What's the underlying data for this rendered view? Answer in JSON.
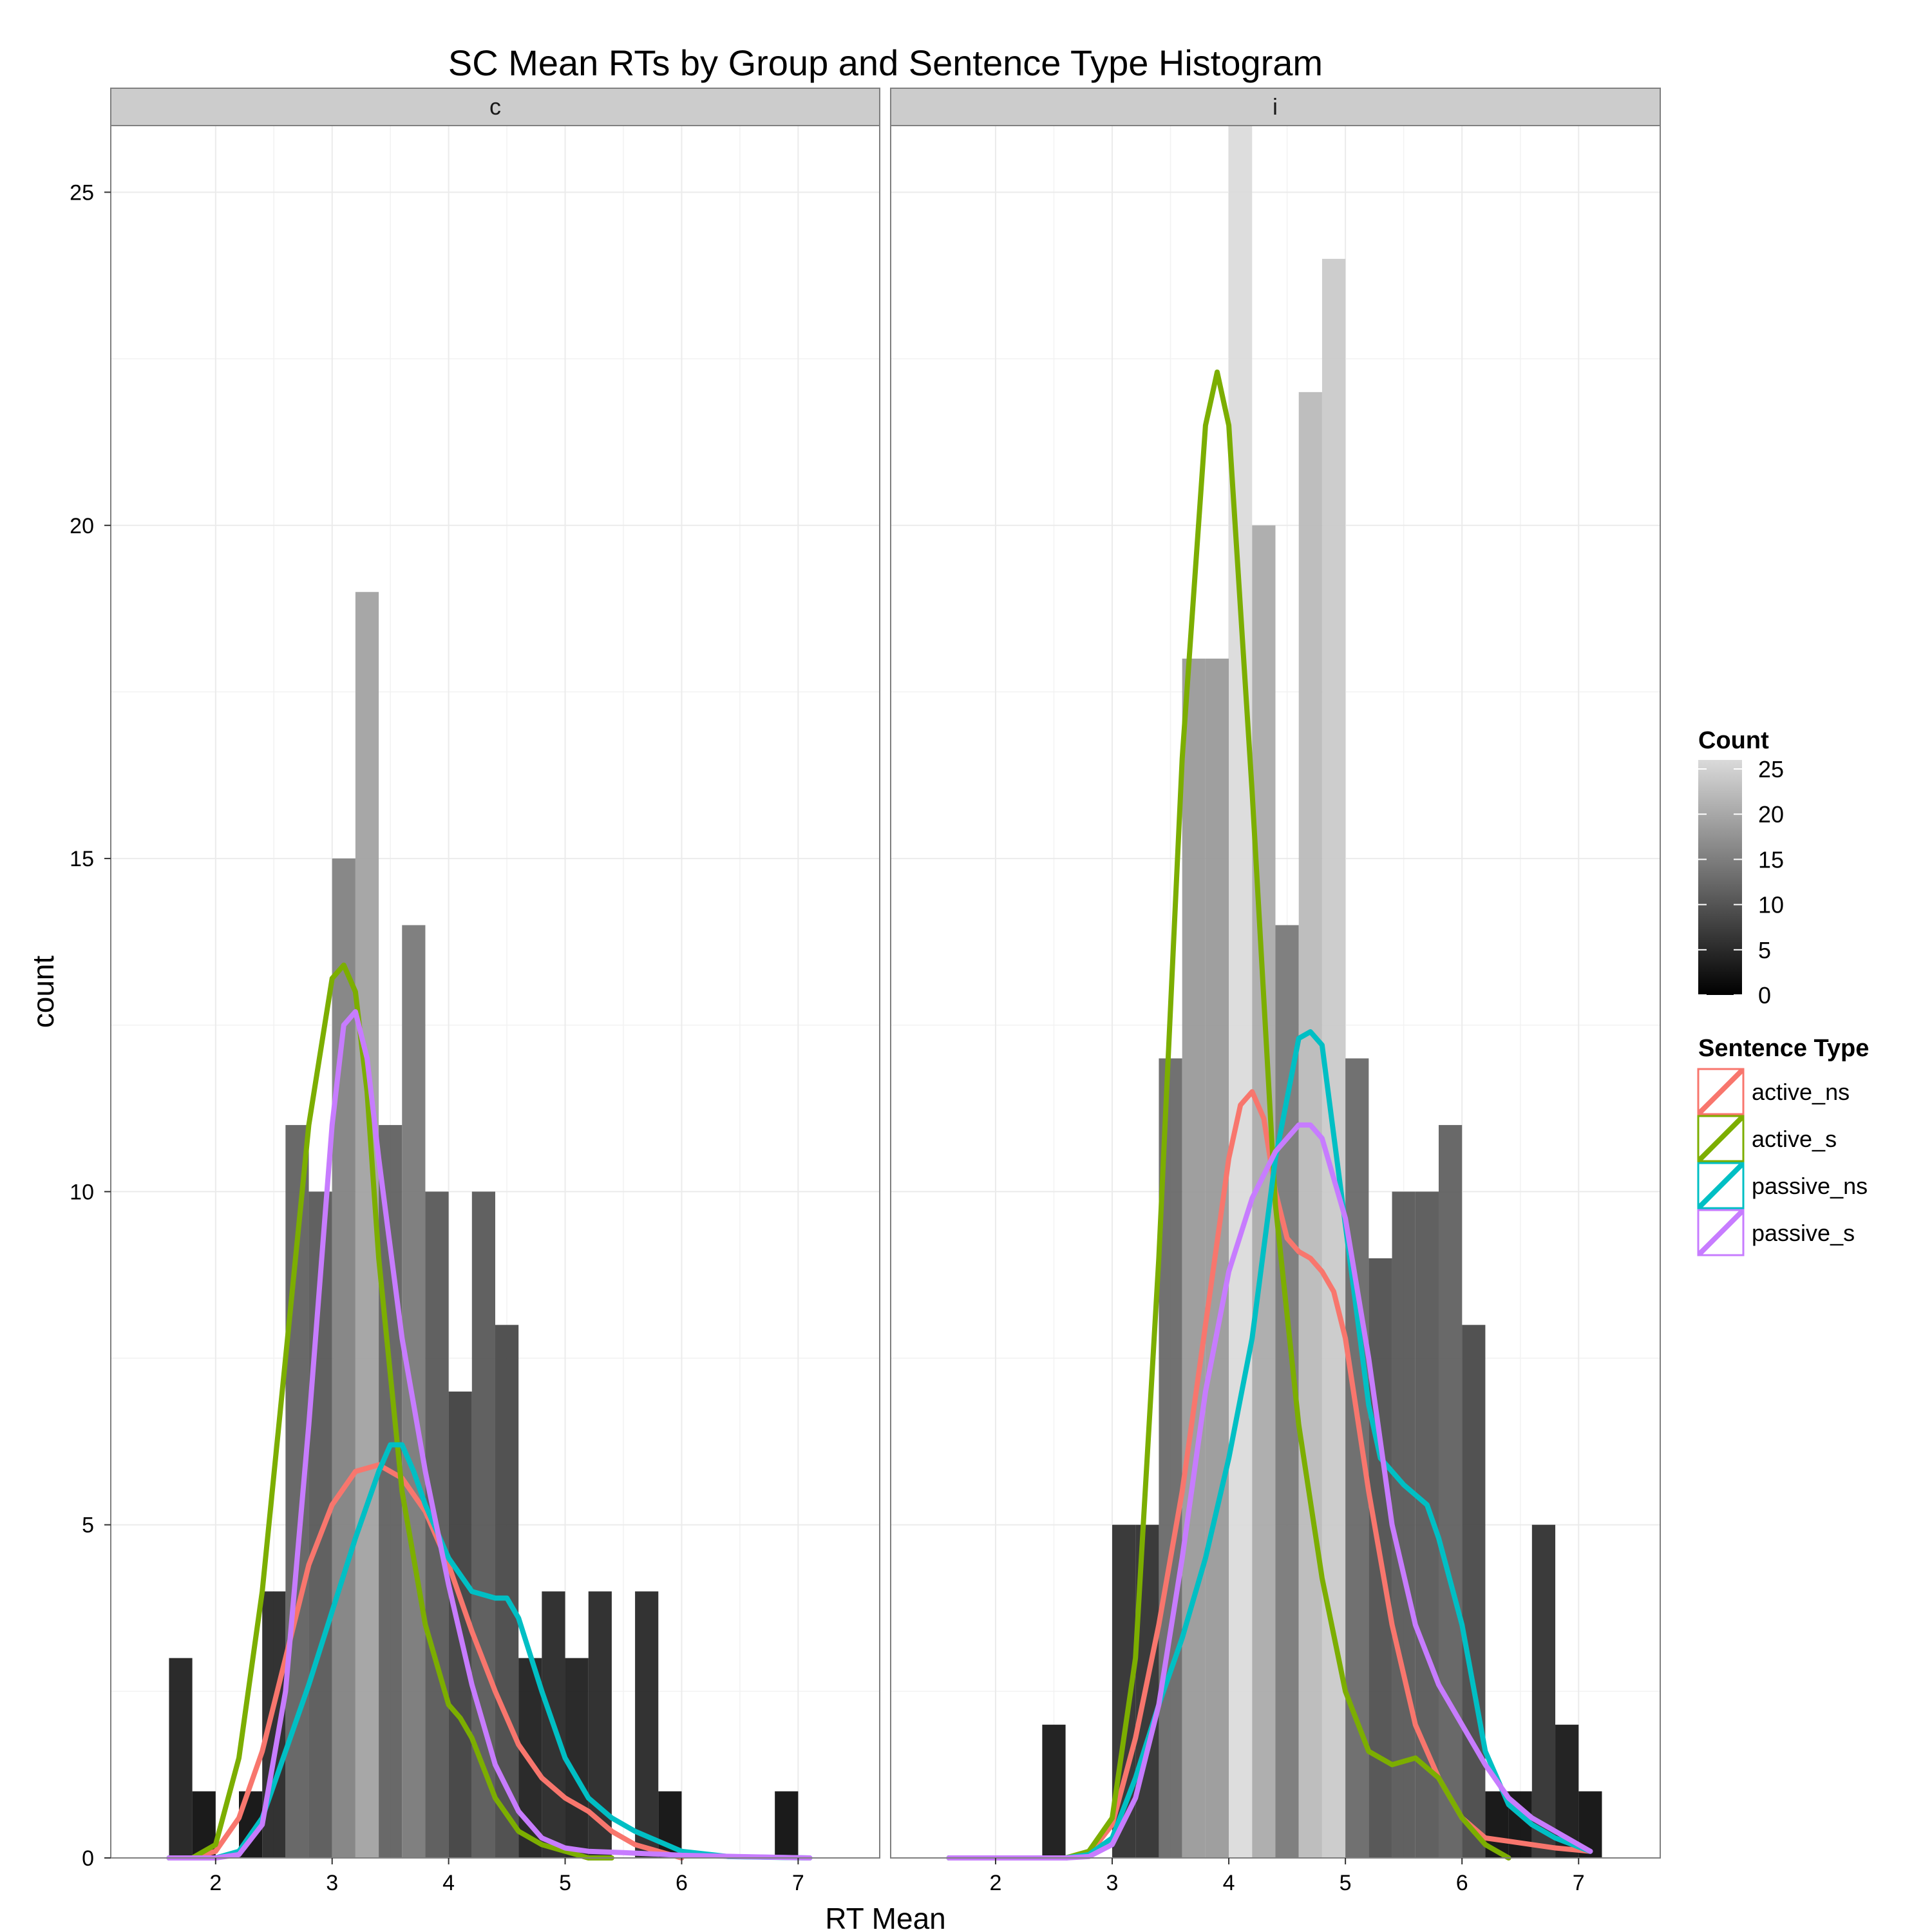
{
  "chart_data": {
    "type": "bar",
    "title": "SC Mean RTs by Group and Sentence Type Histogram",
    "xlabel": "RT Mean",
    "ylabel": "count",
    "xlim": [
      1.1,
      7.7
    ],
    "ylim": [
      0,
      26
    ],
    "x_ticks": [
      "2",
      "3",
      "4",
      "5",
      "6",
      "7"
    ],
    "y_ticks": [
      "0",
      "5",
      "10",
      "15",
      "20",
      "25"
    ],
    "bin_width": 0.2,
    "grid": true,
    "facets": [
      {
        "label": "c",
        "bins": [
          {
            "x": 1.7,
            "count": 3
          },
          {
            "x": 1.9,
            "count": 1
          },
          {
            "x": 2.3,
            "count": 1
          },
          {
            "x": 2.5,
            "count": 4
          },
          {
            "x": 2.7,
            "count": 11
          },
          {
            "x": 2.9,
            "count": 10
          },
          {
            "x": 3.1,
            "count": 15
          },
          {
            "x": 3.3,
            "count": 19
          },
          {
            "x": 3.5,
            "count": 11
          },
          {
            "x": 3.7,
            "count": 14
          },
          {
            "x": 3.9,
            "count": 10
          },
          {
            "x": 4.1,
            "count": 7
          },
          {
            "x": 4.3,
            "count": 10
          },
          {
            "x": 4.5,
            "count": 8
          },
          {
            "x": 4.7,
            "count": 3
          },
          {
            "x": 4.9,
            "count": 4
          },
          {
            "x": 5.1,
            "count": 3
          },
          {
            "x": 5.3,
            "count": 4
          },
          {
            "x": 5.7,
            "count": 4
          },
          {
            "x": 5.9,
            "count": 1
          },
          {
            "x": 6.9,
            "count": 1
          }
        ],
        "series": [
          {
            "name": "active_ns",
            "x": [
              1.6,
              1.8,
              2.0,
              2.2,
              2.4,
              2.6,
              2.8,
              3.0,
              3.2,
              3.4,
              3.6,
              3.8,
              4.0,
              4.2,
              4.4,
              4.6,
              4.8,
              5.0,
              5.2,
              5.4,
              5.6,
              5.8,
              6.0
            ],
            "y": [
              0,
              0,
              0.1,
              0.6,
              1.6,
              3.0,
              4.4,
              5.3,
              5.8,
              5.9,
              5.7,
              5.2,
              4.4,
              3.4,
              2.5,
              1.7,
              1.2,
              0.9,
              0.7,
              0.4,
              0.2,
              0.1,
              0
            ]
          },
          {
            "name": "active_s",
            "x": [
              1.6,
              1.8,
              2.0,
              2.2,
              2.4,
              2.6,
              2.8,
              3.0,
              3.1,
              3.2,
              3.3,
              3.4,
              3.6,
              3.8,
              4.0,
              4.1,
              4.2,
              4.4,
              4.6,
              4.8,
              5.0,
              5.2,
              5.4
            ],
            "y": [
              0,
              0,
              0.2,
              1.5,
              4.0,
              7.5,
              11.0,
              13.2,
              13.4,
              13.0,
              11.5,
              9.0,
              5.5,
              3.5,
              2.3,
              2.1,
              1.8,
              0.9,
              0.4,
              0.2,
              0.1,
              0,
              0
            ]
          },
          {
            "name": "passive_ns",
            "x": [
              1.6,
              2.0,
              2.2,
              2.4,
              2.6,
              2.8,
              3.0,
              3.2,
              3.4,
              3.5,
              3.6,
              3.7,
              3.8,
              4.0,
              4.2,
              4.4,
              4.5,
              4.6,
              4.8,
              5.0,
              5.2,
              5.4,
              5.6,
              5.8,
              6.0,
              6.4,
              7.1
            ],
            "y": [
              0,
              0,
              0.1,
              0.6,
              1.6,
              2.6,
              3.7,
              4.8,
              5.8,
              6.2,
              6.2,
              5.8,
              5.3,
              4.5,
              4.0,
              3.9,
              3.9,
              3.6,
              2.5,
              1.5,
              0.9,
              0.6,
              0.4,
              0.25,
              0.1,
              0.02,
              0
            ]
          },
          {
            "name": "passive_s",
            "x": [
              1.6,
              2.0,
              2.2,
              2.4,
              2.6,
              2.8,
              3.0,
              3.1,
              3.2,
              3.3,
              3.4,
              3.6,
              3.8,
              4.0,
              4.2,
              4.4,
              4.6,
              4.8,
              5.0,
              5.2,
              5.5,
              6.0,
              6.5,
              7.1
            ],
            "y": [
              0,
              0,
              0.05,
              0.5,
              2.5,
              6.5,
              11.0,
              12.5,
              12.7,
              12.0,
              10.5,
              7.8,
              5.8,
              4.1,
              2.6,
              1.4,
              0.7,
              0.3,
              0.15,
              0.1,
              0.08,
              0.04,
              0.02,
              0
            ]
          }
        ]
      },
      {
        "label": "i",
        "bins": [
          {
            "x": 2.5,
            "count": 2
          },
          {
            "x": 3.1,
            "count": 5
          },
          {
            "x": 3.3,
            "count": 5
          },
          {
            "x": 3.5,
            "count": 12
          },
          {
            "x": 3.7,
            "count": 18
          },
          {
            "x": 3.9,
            "count": 18
          },
          {
            "x": 4.1,
            "count": 26
          },
          {
            "x": 4.3,
            "count": 20
          },
          {
            "x": 4.5,
            "count": 14
          },
          {
            "x": 4.7,
            "count": 22
          },
          {
            "x": 4.9,
            "count": 24
          },
          {
            "x": 5.1,
            "count": 12
          },
          {
            "x": 5.3,
            "count": 9
          },
          {
            "x": 5.5,
            "count": 10
          },
          {
            "x": 5.7,
            "count": 10
          },
          {
            "x": 5.9,
            "count": 11
          },
          {
            "x": 6.1,
            "count": 8
          },
          {
            "x": 6.3,
            "count": 1
          },
          {
            "x": 6.5,
            "count": 1
          },
          {
            "x": 6.7,
            "count": 5
          },
          {
            "x": 6.9,
            "count": 2
          },
          {
            "x": 7.1,
            "count": 1
          }
        ],
        "series": [
          {
            "name": "active_ns",
            "x": [
              1.6,
              2.6,
              2.8,
              3.0,
              3.2,
              3.4,
              3.6,
              3.8,
              4.0,
              4.1,
              4.2,
              4.3,
              4.4,
              4.5,
              4.6,
              4.7,
              4.8,
              4.9,
              5.0,
              5.2,
              5.4,
              5.6,
              5.8,
              6.0,
              6.2,
              6.4,
              6.6,
              6.8,
              7.1
            ],
            "y": [
              0,
              0,
              0.05,
              0.5,
              1.8,
              3.5,
              5.5,
              8.0,
              10.5,
              11.3,
              11.5,
              11.1,
              10.0,
              9.3,
              9.1,
              9.0,
              8.8,
              8.5,
              7.8,
              5.5,
              3.5,
              2.0,
              1.2,
              0.6,
              0.3,
              0.25,
              0.2,
              0.15,
              0.1
            ]
          },
          {
            "name": "active_s",
            "x": [
              1.6,
              2.6,
              2.8,
              3.0,
              3.2,
              3.4,
              3.6,
              3.8,
              3.9,
              4.0,
              4.2,
              4.4,
              4.6,
              4.8,
              5.0,
              5.2,
              5.4,
              5.6,
              5.8,
              6.0,
              6.2,
              6.4
            ],
            "y": [
              0,
              0,
              0.1,
              0.6,
              3.0,
              9.0,
              16.5,
              21.5,
              22.3,
              21.5,
              16.0,
              9.8,
              6.5,
              4.2,
              2.5,
              1.6,
              1.4,
              1.5,
              1.2,
              0.6,
              0.2,
              0
            ]
          },
          {
            "name": "passive_ns",
            "x": [
              1.6,
              2.6,
              2.8,
              3.0,
              3.2,
              3.4,
              3.6,
              3.8,
              4.0,
              4.2,
              4.4,
              4.6,
              4.7,
              4.8,
              5.0,
              5.2,
              5.3,
              5.5,
              5.7,
              5.8,
              6.0,
              6.2,
              6.4,
              6.6,
              6.8,
              7.1
            ],
            "y": [
              0,
              0,
              0.05,
              0.3,
              1.2,
              2.3,
              3.3,
              4.5,
              6.0,
              7.8,
              10.5,
              12.3,
              12.4,
              12.2,
              9.5,
              6.8,
              6.0,
              5.6,
              5.3,
              4.8,
              3.5,
              1.6,
              0.8,
              0.5,
              0.3,
              0.1
            ]
          },
          {
            "name": "passive_s",
            "x": [
              1.6,
              2.6,
              2.8,
              3.0,
              3.2,
              3.4,
              3.6,
              3.8,
              4.0,
              4.2,
              4.4,
              4.6,
              4.7,
              4.8,
              5.0,
              5.2,
              5.4,
              5.6,
              5.8,
              6.0,
              6.2,
              6.4,
              6.6,
              6.8,
              7.1
            ],
            "y": [
              0,
              0,
              0.02,
              0.2,
              0.9,
              2.3,
              4.5,
              7.0,
              8.8,
              9.9,
              10.6,
              11.0,
              11.0,
              10.8,
              9.6,
              7.5,
              5.0,
              3.5,
              2.6,
              2.0,
              1.4,
              0.9,
              0.6,
              0.4,
              0.1
            ]
          }
        ]
      }
    ],
    "fill_legend": {
      "title": "Count",
      "labels": [
        "25",
        "20",
        "15",
        "10",
        "5",
        "0"
      ],
      "range": [
        0,
        26
      ],
      "low_color": "#000000",
      "high_color": "#dadada"
    },
    "color_legend": {
      "title": "Sentence Type",
      "entries": [
        {
          "name": "active_ns",
          "color": "#f8766d"
        },
        {
          "name": "active_s",
          "color": "#7cae00"
        },
        {
          "name": "passive_ns",
          "color": "#00bfc4"
        },
        {
          "name": "passive_s",
          "color": "#c77cff"
        }
      ]
    },
    "panel_background": "#ffffff",
    "grid_color": "#ebebeb",
    "strip_color": "#cccccc"
  }
}
